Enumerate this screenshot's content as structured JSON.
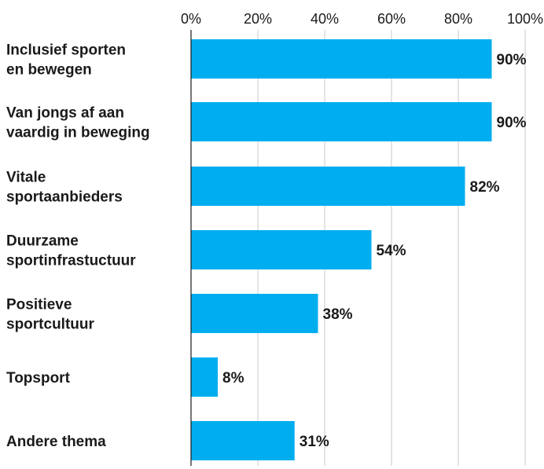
{
  "chart_data": {
    "type": "bar",
    "orientation": "horizontal",
    "categories": [
      [
        "Inclusief sporten",
        "en bewegen"
      ],
      [
        "Van jongs af aan",
        "vaardig in beweging"
      ],
      [
        "Vitale",
        "sportaanbieders"
      ],
      [
        "Duurzame",
        "sportinfrastuctuur"
      ],
      [
        "Positieve",
        "sportcultuur"
      ],
      [
        "Topsport"
      ],
      [
        "Andere thema"
      ]
    ],
    "values": [
      90,
      90,
      82,
      54,
      38,
      8,
      31
    ],
    "value_labels": [
      "90%",
      "90%",
      "82%",
      "54%",
      "38%",
      "8%",
      "31%"
    ],
    "x_ticks": [
      0,
      20,
      40,
      60,
      80,
      100
    ],
    "x_tick_labels": [
      "0%",
      "20%",
      "40%",
      "60%",
      "80%",
      "100%"
    ],
    "xlim": [
      0,
      100
    ],
    "axis_position": "top",
    "grid": true,
    "bar_color": "#00AEEF",
    "grid_color": "#c8c8c8",
    "axis_color": "#1a1a1a"
  }
}
